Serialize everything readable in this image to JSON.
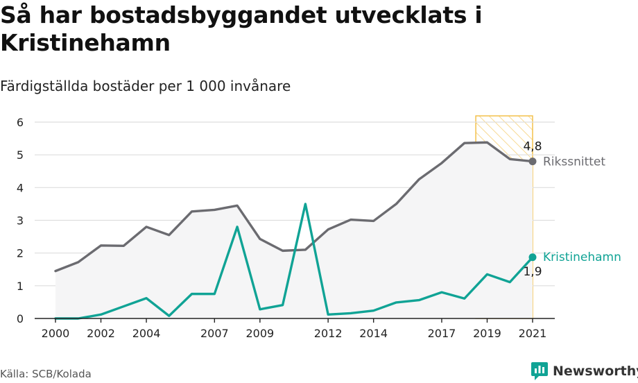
{
  "title": "Så har bostadsbyggandet utvecklats i Kristinehamn",
  "subtitle": "Färdigställda bostäder per 1 000 invånare",
  "source": "Källa: SCB/Kolada",
  "brand": {
    "name": "Newsworthy"
  },
  "colors": {
    "national": "#6b6b70",
    "local": "#10a395",
    "highlight": "#f3c04a",
    "area": "#f5f5f6",
    "grid": "#dedede"
  },
  "chart_data": {
    "type": "line",
    "x": [
      2000,
      2001,
      2002,
      2003,
      2004,
      2005,
      2006,
      2007,
      2008,
      2009,
      2010,
      2011,
      2012,
      2013,
      2014,
      2015,
      2016,
      2017,
      2018,
      2019,
      2020,
      2021
    ],
    "x_ticks": [
      "2000",
      "2002",
      "2004",
      "2007",
      "2009",
      "2012",
      "2014",
      "2017",
      "2019",
      "2021"
    ],
    "y_ticks": [
      "0",
      "1",
      "2",
      "3",
      "4",
      "5",
      "6"
    ],
    "ylim": [
      0,
      6
    ],
    "grid": true,
    "highlight_range": [
      2018.5,
      2021
    ],
    "series": [
      {
        "name": "Rikssnittet",
        "values": [
          1.45,
          1.72,
          2.23,
          2.22,
          2.8,
          2.55,
          3.27,
          3.32,
          3.45,
          2.43,
          2.07,
          2.1,
          2.72,
          3.02,
          2.98,
          3.5,
          4.25,
          4.75,
          5.36,
          5.38,
          4.87,
          4.8
        ],
        "end_label": "4,8"
      },
      {
        "name": "Kristinehamn",
        "values": [
          0.0,
          0.0,
          0.12,
          0.37,
          0.62,
          0.08,
          0.75,
          0.75,
          2.8,
          0.28,
          0.41,
          3.5,
          0.12,
          0.16,
          0.24,
          0.49,
          0.56,
          0.8,
          0.61,
          1.35,
          1.11,
          1.87
        ],
        "end_label": "1,9"
      }
    ]
  }
}
